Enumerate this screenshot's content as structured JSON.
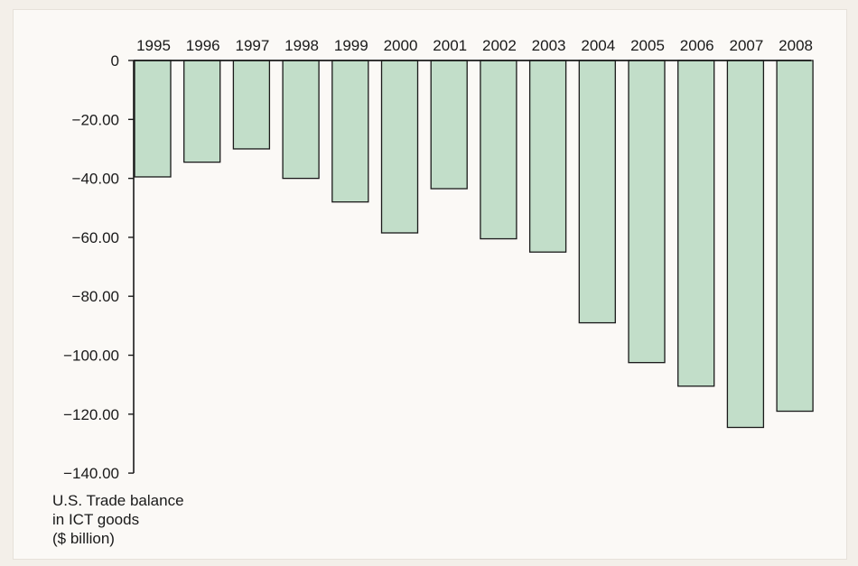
{
  "chart_data": {
    "type": "bar",
    "categories": [
      "1995",
      "1996",
      "1997",
      "1998",
      "1999",
      "2000",
      "2001",
      "2002",
      "2003",
      "2004",
      "2005",
      "2006",
      "2007",
      "2008"
    ],
    "values": [
      -39.5,
      -34.5,
      -30.0,
      -40.0,
      -48.0,
      -58.5,
      -43.5,
      -60.5,
      -65.0,
      -89.0,
      -102.5,
      -110.5,
      -124.5,
      -119.0
    ],
    "ylim": [
      -140,
      0
    ],
    "yticks": [
      0,
      -20,
      -40,
      -60,
      -80,
      -100,
      -120,
      -140
    ],
    "ytick_labels": [
      "0",
      "−20.00",
      "−40.00",
      "−60.00",
      "−80.00",
      "−100.00",
      "−120.00",
      "−140.00"
    ],
    "ylabel_lines": [
      "U.S. Trade balance",
      "in ICT goods",
      "($ billion)"
    ],
    "xlabel": "",
    "title": "",
    "grid": false,
    "colors": {
      "bar_fill": "#c2dec9",
      "bar_stroke": "#1a1a1a",
      "axis": "#1a1a1a"
    }
  }
}
